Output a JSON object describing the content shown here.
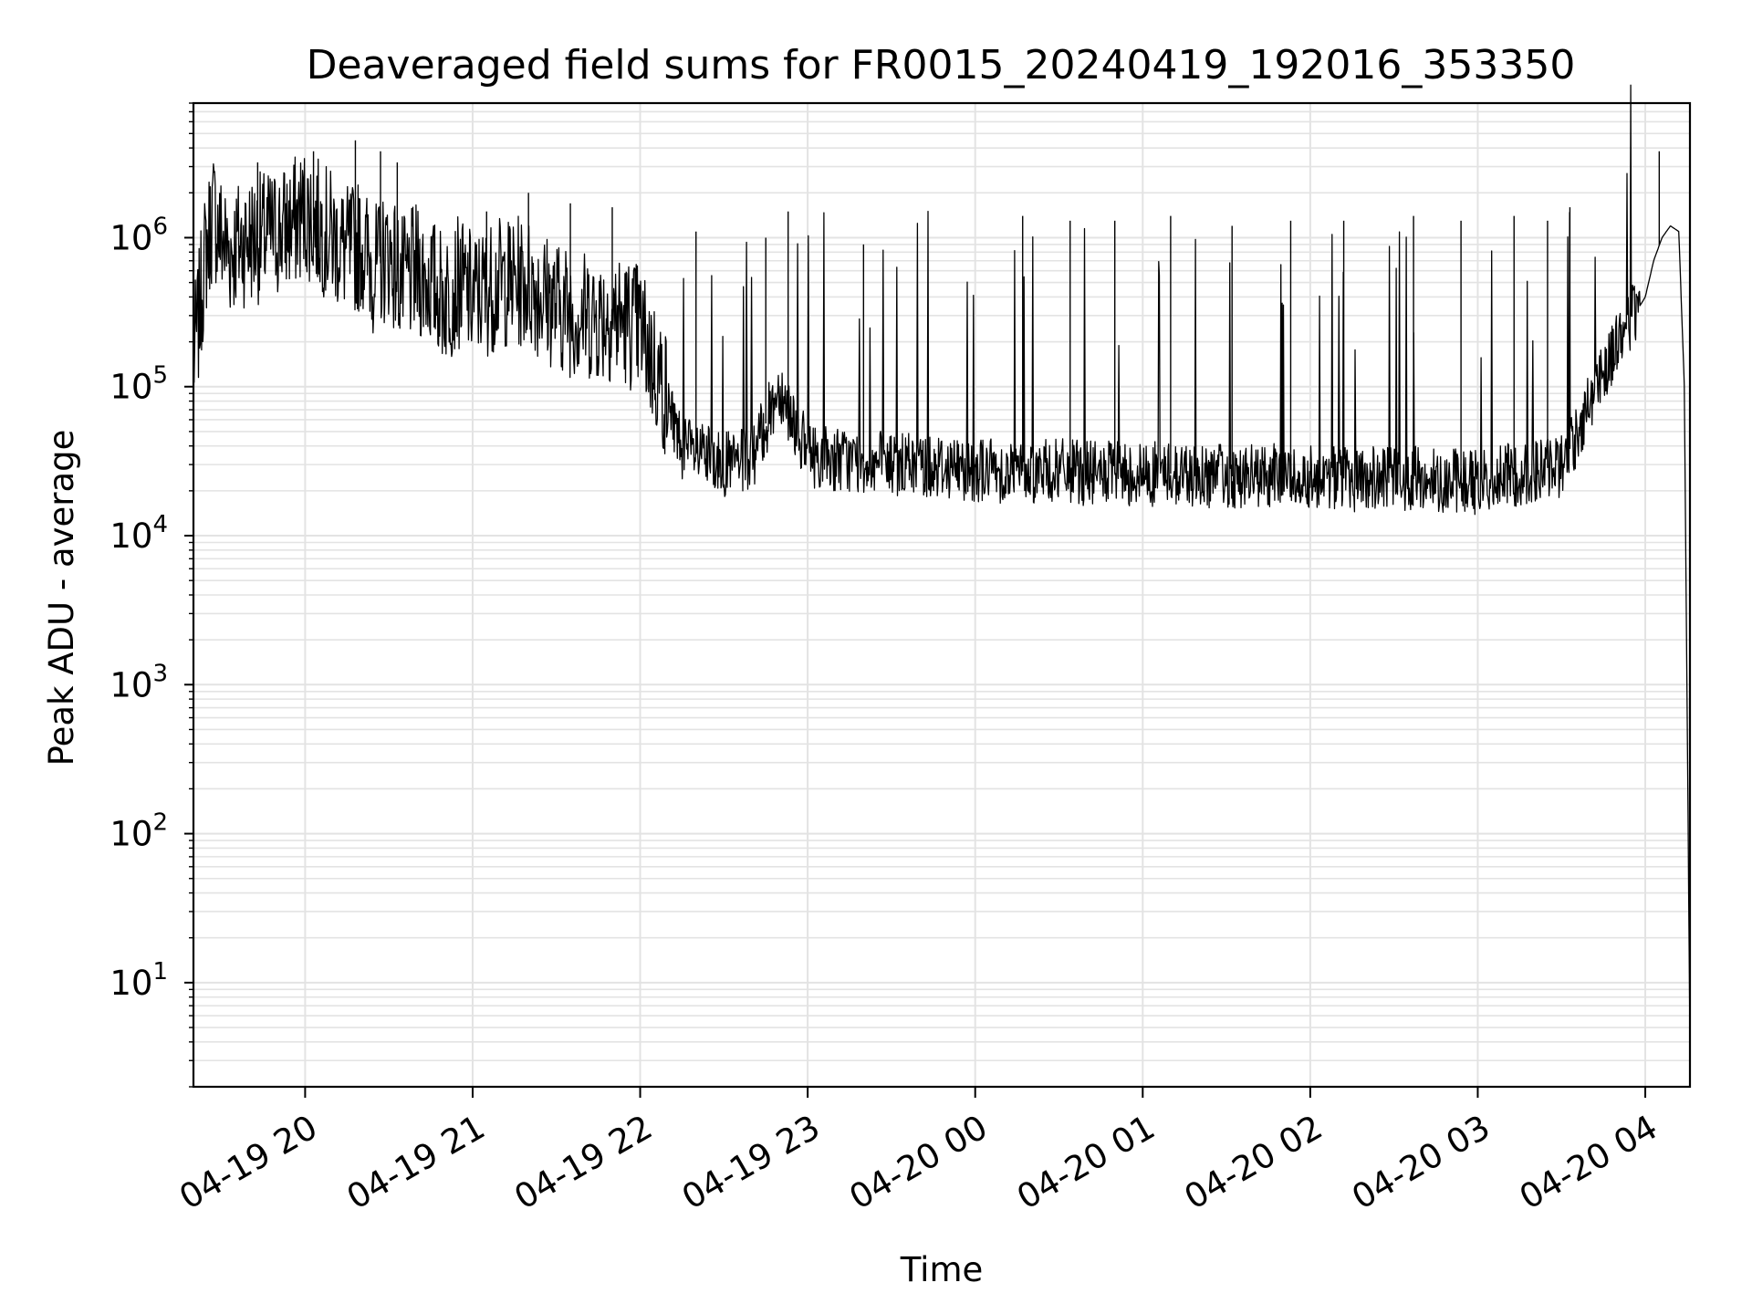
{
  "chart_data": {
    "type": "line",
    "title": "Deaveraged field sums for FR0015_20240419_192016_353350",
    "xlabel": "Time",
    "ylabel": "Peak ADU - average",
    "yscale": "log",
    "grid": true,
    "xlim": [
      "2024-04-19 19:20",
      "2024-04-20 04:16"
    ],
    "ylim": [
      2,
      8000000
    ],
    "x_ticks": [
      "04-19 20",
      "04-19 21",
      "04-19 22",
      "04-19 23",
      "04-20 00",
      "04-20 01",
      "04-20 02",
      "04-20 03",
      "04-20 04"
    ],
    "y_ticks": [
      {
        "base": "10",
        "exp": "1"
      },
      {
        "base": "10",
        "exp": "2"
      },
      {
        "base": "10",
        "exp": "3"
      },
      {
        "base": "10",
        "exp": "4"
      },
      {
        "base": "10",
        "exp": "5"
      },
      {
        "base": "10",
        "exp": "6"
      }
    ],
    "line_color": "#000000",
    "series": [
      {
        "x": [
          "2024-04-19 19:20",
          "2024-04-19 19:22",
          "2024-04-19 19:24",
          "2024-04-19 19:27",
          "2024-04-19 19:30",
          "2024-04-19 19:33",
          "2024-04-19 19:36",
          "2024-04-19 19:40",
          "2024-04-19 19:45",
          "2024-04-19 19:50",
          "2024-04-19 19:55",
          "2024-04-19 20:00",
          "2024-04-19 20:05",
          "2024-04-19 20:10",
          "2024-04-19 20:15",
          "2024-04-19 20:20",
          "2024-04-19 20:25",
          "2024-04-19 20:30",
          "2024-04-19 20:35",
          "2024-04-19 20:40",
          "2024-04-19 20:45",
          "2024-04-19 20:50",
          "2024-04-19 20:55",
          "2024-04-19 21:00",
          "2024-04-19 21:10",
          "2024-04-19 21:20",
          "2024-04-19 21:30",
          "2024-04-19 21:40",
          "2024-04-19 21:50",
          "2024-04-19 22:00",
          "2024-04-19 22:10",
          "2024-04-19 22:15",
          "2024-04-19 22:20",
          "2024-04-19 22:30",
          "2024-04-19 22:40",
          "2024-04-19 22:50",
          "2024-04-19 23:00",
          "2024-04-19 23:15",
          "2024-04-19 23:30",
          "2024-04-19 23:45",
          "2024-04-20 00:00",
          "2024-04-20 00:15",
          "2024-04-20 00:30",
          "2024-04-20 00:45",
          "2024-04-20 01:00",
          "2024-04-20 01:15",
          "2024-04-20 01:30",
          "2024-04-20 01:45",
          "2024-04-20 02:00",
          "2024-04-20 02:15",
          "2024-04-20 02:30",
          "2024-04-20 02:45",
          "2024-04-20 03:00",
          "2024-04-20 03:10",
          "2024-04-20 03:20",
          "2024-04-20 03:30",
          "2024-04-20 03:35",
          "2024-04-20 03:40",
          "2024-04-20 03:45",
          "2024-04-20 03:50",
          "2024-04-20 03:55",
          "2024-04-20 04:00",
          "2024-04-20 04:03",
          "2024-04-20 04:06",
          "2024-04-20 04:09",
          "2024-04-20 04:12",
          "2024-04-20 04:14",
          "2024-04-20 04:16"
        ],
        "y": [
          150000,
          300000,
          700000,
          1500000,
          1000000,
          800000,
          900000,
          1000000,
          1000000,
          1100000,
          1200000,
          1500000,
          1200000,
          1000000,
          800000,
          900000,
          600000,
          800000,
          500000,
          600000,
          500000,
          400000,
          500000,
          400000,
          500000,
          500000,
          350000,
          300000,
          300000,
          250000,
          80000,
          40000,
          35000,
          30000,
          32000,
          100000,
          35000,
          32000,
          30000,
          30000,
          28000,
          27000,
          27000,
          26000,
          26000,
          26000,
          25000,
          25000,
          25000,
          24000,
          24000,
          24000,
          23000,
          25000,
          27000,
          30000,
          45000,
          80000,
          130000,
          200000,
          280000,
          400000,
          700000,
          1000000,
          1200000,
          1100000,
          100000,
          4
        ]
      }
    ],
    "spikes": {
      "x": [
        "2024-04-19 19:43",
        "2024-04-19 20:03",
        "2024-04-19 20:18",
        "2024-04-19 20:27",
        "2024-04-19 20:33",
        "2024-04-19 21:05",
        "2024-04-19 21:20",
        "2024-04-19 21:35",
        "2024-04-19 21:50",
        "2024-04-19 22:20",
        "2024-04-19 22:45",
        "2024-04-19 22:53",
        "2024-04-19 23:20",
        "2024-04-20 00:17",
        "2024-04-20 00:34",
        "2024-04-20 00:50",
        "2024-04-20 01:10",
        "2024-04-20 01:32",
        "2024-04-20 01:53",
        "2024-04-20 02:12",
        "2024-04-20 02:37",
        "2024-04-20 02:54",
        "2024-04-20 03:13",
        "2024-04-20 03:25",
        "2024-04-20 03:33",
        "2024-04-20 04:05"
      ],
      "y": [
        3200000,
        3800000,
        4500000,
        3800000,
        3200000,
        1500000,
        2000000,
        1700000,
        1600000,
        1100000,
        1000000,
        1500000,
        900000,
        1400000,
        1300000,
        1300000,
        1400000,
        1200000,
        1300000,
        1300000,
        1400000,
        1300000,
        1400000,
        1300000,
        1600000,
        3800000
      ]
    }
  }
}
